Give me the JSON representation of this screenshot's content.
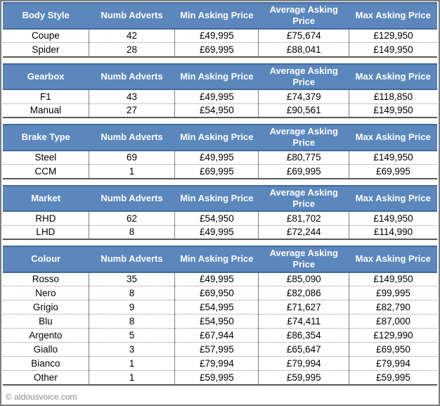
{
  "colors": {
    "header_bg": "#5B87BD",
    "header_border": "#41699E",
    "header_text": "#FFFFFF",
    "grid_line": "#808080",
    "row_divider": "#8C8C8C",
    "table_bottom": "#595959",
    "frame_border": "#7F7F7F",
    "footer_text": "#8A8A8A"
  },
  "chart_data": [
    {
      "type": "table",
      "category_header": "Body Style",
      "columns": [
        "Numb Adverts",
        "Min Asking Price",
        "Average Asking Price",
        "Max Asking Price"
      ],
      "rows": [
        [
          "Coupe",
          "42",
          "£49,995",
          "£75,674",
          "£129,950"
        ],
        [
          "Spider",
          "28",
          "£69,995",
          "£88,041",
          "£149,950"
        ]
      ]
    },
    {
      "type": "table",
      "category_header": "Gearbox",
      "columns": [
        "Numb Adverts",
        "Min Asking Price",
        "Average Asking Price",
        "Max Asking Price"
      ],
      "rows": [
        [
          "F1",
          "43",
          "£49,995",
          "£74,379",
          "£118,850"
        ],
        [
          "Manual",
          "27",
          "£54,950",
          "£90,561",
          "£149,950"
        ]
      ]
    },
    {
      "type": "table",
      "category_header": "Brake Type",
      "columns": [
        "Numb Adverts",
        "Min Asking Price",
        "Average Asking Price",
        "Max Asking Price"
      ],
      "rows": [
        [
          "Steel",
          "69",
          "£49,995",
          "£80,775",
          "£149,950"
        ],
        [
          "CCM",
          "1",
          "£69,995",
          "£69,995",
          "£69,995"
        ]
      ]
    },
    {
      "type": "table",
      "category_header": "Market",
      "columns": [
        "Numb Adverts",
        "Min Asking Price",
        "Average Asking Price",
        "Max Asking Price"
      ],
      "rows": [
        [
          "RHD",
          "62",
          "£54,950",
          "£81,702",
          "£149,950"
        ],
        [
          "LHD",
          "8",
          "£49,995",
          "£72,244",
          "£114,990"
        ]
      ]
    },
    {
      "type": "table",
      "category_header": "Colour",
      "columns": [
        "Numb Adverts",
        "Min Asking Price",
        "Average Asking Price",
        "Max Asking Price"
      ],
      "rows": [
        [
          "Rosso",
          "35",
          "£49,995",
          "£85,090",
          "£149,950"
        ],
        [
          "Nero",
          "8",
          "£69,950",
          "£82,086",
          "£99,995"
        ],
        [
          "Grigio",
          "9",
          "£54,995",
          "£71,627",
          "£82,790"
        ],
        [
          "Blu",
          "8",
          "£54,950",
          "£74,411",
          "£87,000"
        ],
        [
          "Argento",
          "5",
          "£67,944",
          "£86,354",
          "£129,990"
        ],
        [
          "Giallo",
          "3",
          "£57,995",
          "£65,647",
          "£69,950"
        ],
        [
          "Bianco",
          "1",
          "£79,994",
          "£79,994",
          "£79,994"
        ],
        [
          "Other",
          "1",
          "£59,995",
          "£59,995",
          "£59,995"
        ]
      ]
    }
  ],
  "footer": {
    "copyright": "© aldousvoice.com"
  }
}
